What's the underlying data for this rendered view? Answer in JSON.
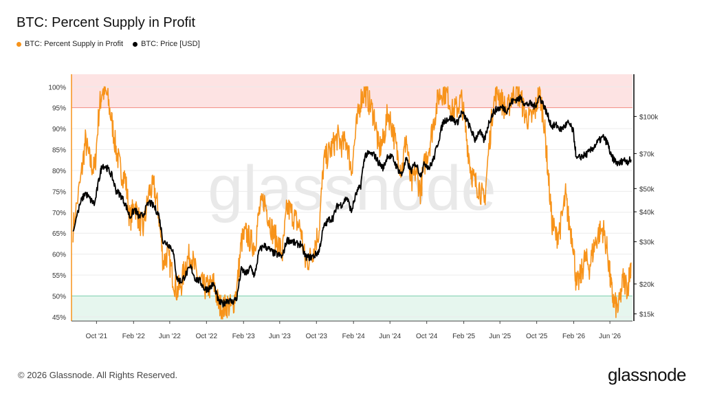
{
  "title": "BTC: Percent Supply in Profit",
  "legend": [
    {
      "label": "BTC: Percent Supply in Profit",
      "color": "#f7931a"
    },
    {
      "label": "BTC: Price [USD]",
      "color": "#000000"
    }
  ],
  "footer": {
    "copyright": "© 2026 Glassnode. All Rights Reserved.",
    "logo": "glassnode"
  },
  "watermark": "glassnode",
  "colors": {
    "supply": "#f7931a",
    "price": "#000000",
    "upper_band": "#fde3e3",
    "upper_line": "#f28b82",
    "lower_band": "#e6f6ee",
    "lower_line": "#7ccfae"
  },
  "chart_data": {
    "type": "line",
    "x_ticks": [
      "Oct '21",
      "Feb '22",
      "Jun '22",
      "Oct '22",
      "Feb '23",
      "Jun '23",
      "Oct '23",
      "Feb '24",
      "Jun '24",
      "Oct '24",
      "Feb '25",
      "Jun '25",
      "Oct '25",
      "Feb '26",
      "Jun '26"
    ],
    "x_range": [
      "2021-07-10",
      "2026-08-15"
    ],
    "y_left": {
      "ticks": [
        "100%",
        "95%",
        "90%",
        "85%",
        "80%",
        "75%",
        "70%",
        "65%",
        "60%",
        "55%",
        "50%",
        "45%"
      ],
      "values": [
        100,
        95,
        90,
        85,
        80,
        75,
        70,
        65,
        60,
        55,
        50,
        45
      ],
      "range": [
        44,
        103
      ]
    },
    "y_right": {
      "scale": "log",
      "ticks": [
        "$100k",
        "$70k",
        "$50k",
        "$40k",
        "$30k",
        "$20k",
        "$15k"
      ],
      "values": [
        100000,
        70000,
        50000,
        40000,
        30000,
        20000,
        15000
      ],
      "range": [
        14000,
        150000
      ]
    },
    "bands": [
      {
        "from": 95,
        "to": 103,
        "axis": "left"
      },
      {
        "from": 44,
        "to": 50,
        "axis": "left"
      }
    ],
    "grid": true,
    "legend_position": "top-left",
    "series": [
      {
        "name": "BTC: Percent Supply in Profit",
        "axis": "left",
        "points": [
          [
            "2021-07-15",
            66
          ],
          [
            "2021-08-10",
            78
          ],
          [
            "2021-08-25",
            87
          ],
          [
            "2021-09-10",
            82
          ],
          [
            "2021-09-25",
            80
          ],
          [
            "2021-10-10",
            95
          ],
          [
            "2021-10-20",
            99
          ],
          [
            "2021-11-05",
            98
          ],
          [
            "2021-11-20",
            92
          ],
          [
            "2021-12-05",
            85
          ],
          [
            "2021-12-20",
            80
          ],
          [
            "2022-01-05",
            78
          ],
          [
            "2022-01-20",
            68
          ],
          [
            "2022-02-05",
            72
          ],
          [
            "2022-02-20",
            68
          ],
          [
            "2022-03-05",
            66
          ],
          [
            "2022-03-25",
            75
          ],
          [
            "2022-04-10",
            76
          ],
          [
            "2022-04-25",
            70
          ],
          [
            "2022-05-10",
            58
          ],
          [
            "2022-05-25",
            60
          ],
          [
            "2022-06-10",
            55
          ],
          [
            "2022-06-25",
            51
          ],
          [
            "2022-07-10",
            53
          ],
          [
            "2022-07-25",
            58
          ],
          [
            "2022-08-10",
            60
          ],
          [
            "2022-08-25",
            56
          ],
          [
            "2022-09-10",
            53
          ],
          [
            "2022-09-25",
            52
          ],
          [
            "2022-10-10",
            52
          ],
          [
            "2022-10-25",
            53
          ],
          [
            "2022-11-10",
            48
          ],
          [
            "2022-11-25",
            47
          ],
          [
            "2022-12-10",
            48
          ],
          [
            "2022-12-25",
            47
          ],
          [
            "2023-01-10",
            52
          ],
          [
            "2023-01-25",
            63
          ],
          [
            "2023-02-10",
            65
          ],
          [
            "2023-02-25",
            63
          ],
          [
            "2023-03-10",
            62
          ],
          [
            "2023-03-25",
            70
          ],
          [
            "2023-04-10",
            73
          ],
          [
            "2023-04-25",
            69
          ],
          [
            "2023-05-10",
            65
          ],
          [
            "2023-05-25",
            63
          ],
          [
            "2023-06-10",
            60
          ],
          [
            "2023-06-25",
            71
          ],
          [
            "2023-07-10",
            70
          ],
          [
            "2023-07-25",
            68
          ],
          [
            "2023-08-10",
            66
          ],
          [
            "2023-08-25",
            58
          ],
          [
            "2023-09-10",
            59
          ],
          [
            "2023-09-25",
            62
          ],
          [
            "2023-10-10",
            66
          ],
          [
            "2023-10-25",
            82
          ],
          [
            "2023-11-10",
            84
          ],
          [
            "2023-11-25",
            86
          ],
          [
            "2023-12-10",
            88
          ],
          [
            "2023-12-25",
            86
          ],
          [
            "2024-01-10",
            87
          ],
          [
            "2024-01-25",
            80
          ],
          [
            "2024-02-10",
            90
          ],
          [
            "2024-02-25",
            97
          ],
          [
            "2024-03-10",
            99
          ],
          [
            "2024-03-25",
            96
          ],
          [
            "2024-04-10",
            93
          ],
          [
            "2024-04-25",
            85
          ],
          [
            "2024-05-10",
            87
          ],
          [
            "2024-05-25",
            94
          ],
          [
            "2024-06-10",
            90
          ],
          [
            "2024-06-25",
            84
          ],
          [
            "2024-07-10",
            80
          ],
          [
            "2024-07-25",
            88
          ],
          [
            "2024-08-10",
            76
          ],
          [
            "2024-08-25",
            80
          ],
          [
            "2024-09-10",
            75
          ],
          [
            "2024-09-25",
            82
          ],
          [
            "2024-10-10",
            86
          ],
          [
            "2024-10-25",
            92
          ],
          [
            "2024-11-10",
            98
          ],
          [
            "2024-11-25",
            99
          ],
          [
            "2024-12-10",
            98
          ],
          [
            "2024-12-25",
            94
          ],
          [
            "2025-01-10",
            95
          ],
          [
            "2025-01-25",
            97
          ],
          [
            "2025-02-10",
            88
          ],
          [
            "2025-02-25",
            80
          ],
          [
            "2025-03-10",
            77
          ],
          [
            "2025-03-25",
            76
          ],
          [
            "2025-04-10",
            72
          ],
          [
            "2025-04-25",
            85
          ],
          [
            "2025-05-10",
            96
          ],
          [
            "2025-05-25",
            99
          ],
          [
            "2025-06-10",
            96
          ],
          [
            "2025-06-25",
            94
          ],
          [
            "2025-07-10",
            98
          ],
          [
            "2025-07-25",
            99
          ],
          [
            "2025-08-10",
            97
          ],
          [
            "2025-08-25",
            93
          ],
          [
            "2025-09-10",
            92
          ],
          [
            "2025-09-25",
            94
          ],
          [
            "2025-10-10",
            99
          ],
          [
            "2025-10-25",
            92
          ],
          [
            "2025-11-05",
            82
          ],
          [
            "2025-11-20",
            68
          ],
          [
            "2025-12-05",
            64
          ],
          [
            "2025-12-20",
            67
          ],
          [
            "2026-01-05",
            74
          ],
          [
            "2026-01-15",
            68
          ],
          [
            "2026-01-30",
            63
          ],
          [
            "2026-02-10",
            52
          ],
          [
            "2026-02-25",
            55
          ],
          [
            "2026-03-10",
            59
          ],
          [
            "2026-03-25",
            57
          ],
          [
            "2026-04-10",
            62
          ],
          [
            "2026-04-25",
            65
          ],
          [
            "2026-05-10",
            66
          ],
          [
            "2026-05-25",
            60
          ],
          [
            "2026-06-05",
            52
          ],
          [
            "2026-06-15",
            48
          ],
          [
            "2026-06-30",
            47
          ],
          [
            "2026-07-15",
            54
          ],
          [
            "2026-07-30",
            52
          ],
          [
            "2026-08-10",
            58
          ]
        ]
      },
      {
        "name": "BTC: Price [USD]",
        "axis": "right",
        "points": [
          [
            "2021-07-15",
            33000
          ],
          [
            "2021-08-10",
            44000
          ],
          [
            "2021-08-25",
            48000
          ],
          [
            "2021-09-10",
            45000
          ],
          [
            "2021-09-25",
            43000
          ],
          [
            "2021-10-10",
            55000
          ],
          [
            "2021-10-20",
            63000
          ],
          [
            "2021-11-05",
            61000
          ],
          [
            "2021-11-20",
            57000
          ],
          [
            "2021-12-05",
            49000
          ],
          [
            "2021-12-20",
            47000
          ],
          [
            "2022-01-05",
            43000
          ],
          [
            "2022-01-20",
            38000
          ],
          [
            "2022-02-05",
            41000
          ],
          [
            "2022-02-20",
            38000
          ],
          [
            "2022-03-05",
            39000
          ],
          [
            "2022-03-25",
            44000
          ],
          [
            "2022-04-10",
            42000
          ],
          [
            "2022-04-25",
            39000
          ],
          [
            "2022-05-10",
            30000
          ],
          [
            "2022-05-25",
            29500
          ],
          [
            "2022-06-10",
            28000
          ],
          [
            "2022-06-25",
            21000
          ],
          [
            "2022-07-10",
            20500
          ],
          [
            "2022-07-25",
            22000
          ],
          [
            "2022-08-10",
            23500
          ],
          [
            "2022-08-25",
            21000
          ],
          [
            "2022-09-10",
            20500
          ],
          [
            "2022-09-25",
            19000
          ],
          [
            "2022-10-10",
            19200
          ],
          [
            "2022-10-25",
            20000
          ],
          [
            "2022-11-10",
            16800
          ],
          [
            "2022-11-25",
            16500
          ],
          [
            "2022-12-10",
            17200
          ],
          [
            "2022-12-25",
            16800
          ],
          [
            "2023-01-10",
            17500
          ],
          [
            "2023-01-25",
            23000
          ],
          [
            "2023-02-10",
            22000
          ],
          [
            "2023-02-25",
            23500
          ],
          [
            "2023-03-10",
            21500
          ],
          [
            "2023-03-25",
            27500
          ],
          [
            "2023-04-10",
            29000
          ],
          [
            "2023-04-25",
            28000
          ],
          [
            "2023-05-10",
            27000
          ],
          [
            "2023-05-25",
            26500
          ],
          [
            "2023-06-10",
            26000
          ],
          [
            "2023-06-25",
            30500
          ],
          [
            "2023-07-10",
            30300
          ],
          [
            "2023-07-25",
            29300
          ],
          [
            "2023-08-10",
            29400
          ],
          [
            "2023-08-25",
            26000
          ],
          [
            "2023-09-10",
            25800
          ],
          [
            "2023-09-25",
            26300
          ],
          [
            "2023-10-10",
            27500
          ],
          [
            "2023-10-25",
            34500
          ],
          [
            "2023-11-10",
            37000
          ],
          [
            "2023-11-25",
            37800
          ],
          [
            "2023-12-10",
            42500
          ],
          [
            "2023-12-25",
            43000
          ],
          [
            "2024-01-10",
            46000
          ],
          [
            "2024-01-25",
            40000
          ],
          [
            "2024-02-10",
            47500
          ],
          [
            "2024-02-25",
            51500
          ],
          [
            "2024-03-10",
            69000
          ],
          [
            "2024-03-25",
            70000
          ],
          [
            "2024-04-10",
            69000
          ],
          [
            "2024-04-25",
            64000
          ],
          [
            "2024-05-10",
            61000
          ],
          [
            "2024-05-25",
            69000
          ],
          [
            "2024-06-10",
            67000
          ],
          [
            "2024-06-25",
            61000
          ],
          [
            "2024-07-10",
            57000
          ],
          [
            "2024-07-25",
            66000
          ],
          [
            "2024-08-10",
            59000
          ],
          [
            "2024-08-25",
            64000
          ],
          [
            "2024-09-10",
            57000
          ],
          [
            "2024-09-25",
            64000
          ],
          [
            "2024-10-10",
            61000
          ],
          [
            "2024-10-25",
            67000
          ],
          [
            "2024-11-10",
            80000
          ],
          [
            "2024-11-25",
            95000
          ],
          [
            "2024-12-10",
            98000
          ],
          [
            "2024-12-25",
            98000
          ],
          [
            "2025-01-10",
            94000
          ],
          [
            "2025-01-25",
            104000
          ],
          [
            "2025-02-10",
            97000
          ],
          [
            "2025-02-25",
            88000
          ],
          [
            "2025-03-10",
            80000
          ],
          [
            "2025-03-25",
            87000
          ],
          [
            "2025-04-10",
            79000
          ],
          [
            "2025-04-25",
            94000
          ],
          [
            "2025-05-10",
            104000
          ],
          [
            "2025-05-25",
            108000
          ],
          [
            "2025-06-10",
            109000
          ],
          [
            "2025-06-25",
            106000
          ],
          [
            "2025-07-10",
            115000
          ],
          [
            "2025-07-25",
            118000
          ],
          [
            "2025-08-10",
            119000
          ],
          [
            "2025-08-25",
            112000
          ],
          [
            "2025-09-10",
            113000
          ],
          [
            "2025-09-25",
            110000
          ],
          [
            "2025-10-10",
            121000
          ],
          [
            "2025-10-25",
            111000
          ],
          [
            "2025-11-05",
            102000
          ],
          [
            "2025-11-20",
            91000
          ],
          [
            "2025-12-05",
            92000
          ],
          [
            "2025-12-20",
            88000
          ],
          [
            "2026-01-05",
            92000
          ],
          [
            "2026-01-15",
            94000
          ],
          [
            "2026-01-30",
            87000
          ],
          [
            "2026-02-10",
            66000
          ],
          [
            "2026-02-25",
            68000
          ],
          [
            "2026-03-10",
            69000
          ],
          [
            "2026-03-25",
            71000
          ],
          [
            "2026-04-10",
            75000
          ],
          [
            "2026-04-25",
            79000
          ],
          [
            "2026-05-10",
            82000
          ],
          [
            "2026-05-25",
            77000
          ],
          [
            "2026-06-05",
            68000
          ],
          [
            "2026-06-15",
            66000
          ],
          [
            "2026-06-30",
            63000
          ],
          [
            "2026-07-15",
            66000
          ],
          [
            "2026-07-30",
            65000
          ],
          [
            "2026-08-10",
            66000
          ]
        ]
      }
    ]
  }
}
